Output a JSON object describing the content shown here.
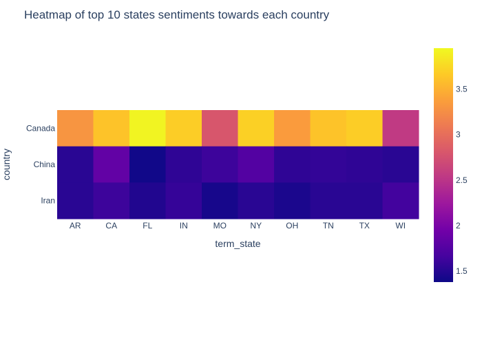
{
  "chart_data": {
    "type": "heatmap",
    "title": "Heatmap of top 10 states sentiments towards each country",
    "xlabel": "term_state",
    "ylabel": "country",
    "x": [
      "AR",
      "CA",
      "FL",
      "IN",
      "MO",
      "NY",
      "OH",
      "TN",
      "TX",
      "WI"
    ],
    "y": [
      "Canada",
      "China",
      "Iran"
    ],
    "z": [
      [
        3.3,
        3.62,
        3.92,
        3.68,
        2.8,
        3.7,
        3.35,
        3.62,
        3.68,
        2.55
      ],
      [
        1.52,
        1.85,
        1.4,
        1.55,
        1.62,
        1.75,
        1.55,
        1.57,
        1.55,
        1.52
      ],
      [
        1.52,
        1.62,
        1.48,
        1.58,
        1.43,
        1.52,
        1.45,
        1.52,
        1.52,
        1.65
      ]
    ],
    "colorscale": [
      "#0d0887",
      "#46039f",
      "#7201a8",
      "#9c179e",
      "#bd3786",
      "#d8576b",
      "#ed7953",
      "#fb9f3a",
      "#fdca26",
      "#f0f921"
    ],
    "zmin": 1.38,
    "zmax": 3.95,
    "colorbar_ticks": [
      1.5,
      2,
      2.5,
      3,
      3.5
    ],
    "colorbar_ticklabels": [
      "1.5",
      "2",
      "2.5",
      "3",
      "3.5"
    ]
  }
}
